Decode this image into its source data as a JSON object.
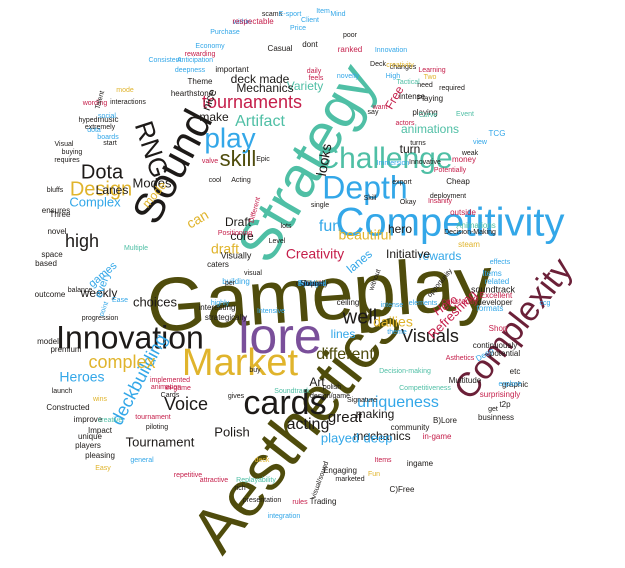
{
  "palette": {
    "olive": "#4f4c0c",
    "teal": "#4fbfa5",
    "blue": "#33a7e8",
    "black": "#1d1a18",
    "purple": "#7a4f9a",
    "gold": "#e0b42c",
    "crimson": "#c51e4a",
    "maroon": "#6b2038"
  },
  "words": [
    {
      "text": "Gameplay",
      "color": "olive"
    },
    {
      "text": "Aesthetics",
      "color": "olive"
    },
    {
      "text": "Strategy",
      "color": "teal"
    },
    {
      "text": "Competitivity",
      "color": "blue"
    },
    {
      "text": "lore",
      "color": "purple"
    },
    {
      "text": "Innovation",
      "color": "black"
    },
    {
      "text": "Sound",
      "color": "black"
    },
    {
      "text": "Market",
      "color": "gold"
    },
    {
      "text": "Complexity",
      "color": "maroon"
    },
    {
      "text": "Depth",
      "color": "blue"
    },
    {
      "text": "Challenge",
      "color": "teal"
    },
    {
      "text": "cards",
      "color": "black"
    },
    {
      "text": "play",
      "color": "blue"
    },
    {
      "text": "skill",
      "color": "olive"
    },
    {
      "text": "RNG",
      "color": "black"
    },
    {
      "text": "tournaments",
      "color": "crimson"
    },
    {
      "text": "Visuals",
      "color": "black"
    },
    {
      "text": "deckbuilding",
      "color": "blue"
    },
    {
      "text": "uniqueness",
      "color": "blue"
    },
    {
      "text": "Design",
      "color": "gold"
    },
    {
      "text": "Dota",
      "color": "black"
    },
    {
      "text": "different",
      "color": "olive"
    },
    {
      "text": "Voice",
      "color": "black"
    },
    {
      "text": "acting",
      "color": "black"
    },
    {
      "text": "well",
      "color": "black"
    },
    {
      "text": "complex",
      "color": "gold"
    },
    {
      "text": "high",
      "color": "black"
    },
    {
      "text": "Artifact",
      "color": "teal"
    },
    {
      "text": "draft",
      "color": "gold"
    },
    {
      "text": "fun",
      "color": "blue"
    },
    {
      "text": "dailies",
      "color": "gold"
    },
    {
      "text": "Creativity",
      "color": "crimson"
    },
    {
      "text": "Heroes",
      "color": "blue"
    },
    {
      "text": "Tournament",
      "color": "black"
    },
    {
      "text": "mechanics",
      "color": "black"
    },
    {
      "text": "played",
      "color": "blue"
    },
    {
      "text": "deep",
      "color": "blue"
    },
    {
      "text": "Polish",
      "color": "black"
    },
    {
      "text": "great",
      "color": "black"
    },
    {
      "text": "making",
      "color": "black"
    },
    {
      "text": "Refreshing",
      "color": "crimson"
    },
    {
      "text": "beautiful",
      "color": "gold"
    },
    {
      "text": "choices",
      "color": "black"
    },
    {
      "text": "weekly",
      "color": "black"
    },
    {
      "text": "deck made",
      "color": "black"
    },
    {
      "text": "Variety",
      "color": "teal"
    },
    {
      "text": "Mechanics",
      "color": "black"
    },
    {
      "text": "Modes",
      "color": "black"
    },
    {
      "text": "Complex",
      "color": "blue"
    },
    {
      "text": "rewards",
      "color": "blue"
    },
    {
      "text": "Initiative",
      "color": "black"
    },
    {
      "text": "Lanes",
      "color": "black"
    },
    {
      "text": "looks",
      "color": "black"
    },
    {
      "text": "hero",
      "color": "black"
    },
    {
      "text": "turn",
      "color": "black"
    },
    {
      "text": "lanes",
      "color": "blue"
    },
    {
      "text": "lines",
      "color": "blue"
    },
    {
      "text": "Art",
      "color": "black"
    },
    {
      "text": "Draft",
      "color": "black"
    },
    {
      "text": "core",
      "color": "black"
    },
    {
      "text": "nice",
      "color": "black"
    },
    {
      "text": "mode",
      "color": "gold"
    },
    {
      "text": "make",
      "color": "black"
    },
    {
      "text": "can",
      "color": "gold"
    },
    {
      "text": "Free",
      "color": "crimson"
    },
    {
      "text": "animations",
      "color": "teal"
    },
    {
      "text": "Hero",
      "color": "crimson"
    },
    {
      "text": "every",
      "color": "blue"
    },
    {
      "text": "games",
      "color": "blue"
    },
    {
      "text": "Visually",
      "color": "black"
    },
    {
      "text": "strategically",
      "color": "black"
    },
    {
      "text": "interesting",
      "color": "black"
    },
    {
      "text": "ceiling",
      "color": "black"
    },
    {
      "text": "hearthstone",
      "color": "black"
    },
    {
      "text": "Theme",
      "color": "black"
    },
    {
      "text": "important",
      "color": "black"
    },
    {
      "text": "music",
      "color": "black"
    },
    {
      "text": "dota",
      "color": "blue"
    },
    {
      "text": "boards",
      "color": "blue"
    },
    {
      "text": "extremely",
      "color": "black"
    },
    {
      "text": "Casual",
      "color": "black"
    },
    {
      "text": "dont",
      "color": "black"
    },
    {
      "text": "ranked",
      "color": "crimson"
    },
    {
      "text": "Intense",
      "color": "black"
    },
    {
      "text": "playing",
      "color": "black"
    },
    {
      "text": "Playing",
      "color": "black"
    },
    {
      "text": "TCG",
      "color": "blue"
    },
    {
      "text": "weak",
      "color": "black"
    },
    {
      "text": "money",
      "color": "crimson"
    },
    {
      "text": "Cheap",
      "color": "black"
    },
    {
      "text": "outside",
      "color": "crimson"
    },
    {
      "text": "Animations",
      "color": "teal"
    },
    {
      "text": "steam",
      "color": "gold"
    },
    {
      "text": "Items",
      "color": "blue"
    },
    {
      "text": "related",
      "color": "blue"
    },
    {
      "text": "soundtrack",
      "color": "black"
    },
    {
      "text": "Excellent",
      "color": "crimson"
    },
    {
      "text": "developer",
      "color": "black"
    },
    {
      "text": "constantly",
      "color": "crimson"
    },
    {
      "text": "formats",
      "color": "blue"
    },
    {
      "text": "ccg",
      "color": "blue"
    },
    {
      "text": "Shop",
      "color": "crimson"
    },
    {
      "text": "continuously",
      "color": "black"
    },
    {
      "text": "Deep",
      "color": "blue"
    },
    {
      "text": "potential",
      "color": "black"
    },
    {
      "text": "etc",
      "color": "black"
    },
    {
      "text": "graphic",
      "color": "black"
    },
    {
      "text": "surprisingly",
      "color": "crimson"
    },
    {
      "text": "explore",
      "color": "blue"
    },
    {
      "text": "t2p",
      "color": "black"
    },
    {
      "text": "get",
      "color": "black"
    },
    {
      "text": "businness",
      "color": "black"
    },
    {
      "text": "in-game",
      "color": "crimson"
    },
    {
      "text": "B)Lore",
      "color": "black"
    },
    {
      "text": "ingame",
      "color": "black"
    },
    {
      "text": "community",
      "color": "black"
    },
    {
      "text": "Engaging",
      "color": "black"
    },
    {
      "text": "marketed",
      "color": "black"
    },
    {
      "text": "C)Free",
      "color": "black"
    },
    {
      "text": "Trading",
      "color": "black"
    },
    {
      "text": "Constructed",
      "color": "black"
    },
    {
      "text": "improve",
      "color": "black"
    },
    {
      "text": "unique",
      "color": "black"
    },
    {
      "text": "players",
      "color": "black"
    },
    {
      "text": "pleasing",
      "color": "black"
    },
    {
      "text": "Impact",
      "color": "black"
    },
    {
      "text": "launch",
      "color": "black"
    },
    {
      "text": "premium",
      "color": "black"
    },
    {
      "text": "model",
      "color": "black"
    },
    {
      "text": "based",
      "color": "black"
    },
    {
      "text": "outcome",
      "color": "black"
    },
    {
      "text": "Three",
      "color": "black"
    },
    {
      "text": "novel",
      "color": "black"
    },
    {
      "text": "space",
      "color": "black"
    },
    {
      "text": "ensures",
      "color": "black"
    },
    {
      "text": "bluffs",
      "color": "black"
    },
    {
      "text": "requires",
      "color": "black"
    },
    {
      "text": "buying",
      "color": "black"
    },
    {
      "text": "Visual",
      "color": "black"
    },
    {
      "text": "hyped",
      "color": "black"
    },
    {
      "text": "wording",
      "color": "crimson"
    },
    {
      "text": "start",
      "color": "black"
    },
    {
      "text": "social",
      "color": "blue"
    },
    {
      "text": "mode",
      "color": "gold"
    },
    {
      "text": "Consistent",
      "color": "blue"
    },
    {
      "text": "rewarding",
      "color": "crimson"
    },
    {
      "text": "Anticipation",
      "color": "blue"
    },
    {
      "text": "Economy",
      "color": "blue"
    },
    {
      "text": "deepness",
      "color": "blue"
    },
    {
      "text": "Purchase",
      "color": "blue"
    },
    {
      "text": "within",
      "color": "blue"
    },
    {
      "text": "respectable",
      "color": "crimson"
    },
    {
      "text": "scams",
      "color": "black"
    },
    {
      "text": "E-sport",
      "color": "blue"
    },
    {
      "text": "Client",
      "color": "blue"
    },
    {
      "text": "Item",
      "color": "blue"
    },
    {
      "text": "Mind",
      "color": "blue"
    },
    {
      "text": "Price",
      "color": "blue"
    },
    {
      "text": "poor",
      "color": "black"
    },
    {
      "text": "Deck",
      "color": "black"
    },
    {
      "text": "changes",
      "color": "black"
    },
    {
      "text": "Learning",
      "color": "crimson"
    },
    {
      "text": "High",
      "color": "blue"
    },
    {
      "text": "need",
      "color": "black"
    },
    {
      "text": "required",
      "color": "black"
    },
    {
      "text": "Event",
      "color": "teal"
    },
    {
      "text": "Curve",
      "color": "teal"
    },
    {
      "text": "view",
      "color": "blue"
    },
    {
      "text": "Potentially",
      "color": "crimson"
    },
    {
      "text": "Insanity",
      "color": "crimson"
    },
    {
      "text": "Okay",
      "color": "black"
    },
    {
      "text": "Immersion",
      "color": "blue"
    },
    {
      "text": "Multitude",
      "color": "black"
    },
    {
      "text": "Decision-making",
      "color": "teal"
    },
    {
      "text": "Competitiveness",
      "color": "teal"
    },
    {
      "text": "Signature",
      "color": "black"
    },
    {
      "text": "design/game",
      "color": "black"
    },
    {
      "text": "Soundtrack",
      "color": "teal"
    },
    {
      "text": "polish",
      "color": "black"
    },
    {
      "text": "buy",
      "color": "black"
    },
    {
      "text": "gives",
      "color": "black"
    },
    {
      "text": "rich",
      "color": "black"
    },
    {
      "text": "presentation",
      "color": "black"
    },
    {
      "text": "Replayability",
      "color": "teal"
    },
    {
      "text": "rules",
      "color": "crimson"
    },
    {
      "text": "integration",
      "color": "blue"
    },
    {
      "text": "visual/sound",
      "color": "black"
    },
    {
      "text": "attractive",
      "color": "crimson"
    },
    {
      "text": "repetitive",
      "color": "crimson"
    },
    {
      "text": "tournament",
      "color": "crimson"
    },
    {
      "text": "piloting",
      "color": "black"
    },
    {
      "text": "Easy",
      "color": "gold"
    },
    {
      "text": "general",
      "color": "blue"
    },
    {
      "text": "implemented",
      "color": "crimson"
    },
    {
      "text": "In-game",
      "color": "crimson"
    },
    {
      "text": "animation",
      "color": "crimson"
    },
    {
      "text": "Cards",
      "color": "black"
    },
    {
      "text": "Asthetics",
      "color": "crimson"
    },
    {
      "text": "opportunity",
      "color": "black"
    },
    {
      "text": "elements",
      "color": "blue"
    },
    {
      "text": "theme",
      "color": "blue"
    },
    {
      "text": "intense",
      "color": "blue"
    },
    {
      "text": "building",
      "color": "blue"
    },
    {
      "text": "caters",
      "color": "black"
    },
    {
      "text": "visual",
      "color": "black"
    },
    {
      "text": "Positioning",
      "color": "crimson"
    },
    {
      "text": "Level",
      "color": "black"
    },
    {
      "text": "lots",
      "color": "black"
    },
    {
      "text": "per",
      "color": "black"
    },
    {
      "text": "Epic",
      "color": "black"
    },
    {
      "text": "feels",
      "color": "crimson"
    },
    {
      "text": "want",
      "color": "crimson"
    },
    {
      "text": "actors",
      "color": "crimson"
    },
    {
      "text": "say",
      "color": "black"
    },
    {
      "text": "cool",
      "color": "black"
    },
    {
      "text": "valve",
      "color": "crimson"
    },
    {
      "text": "Acting",
      "color": "black"
    },
    {
      "text": "Skill",
      "color": "black"
    },
    {
      "text": "export",
      "color": "black"
    },
    {
      "text": "daily",
      "color": "crimson"
    },
    {
      "text": "novelty",
      "color": "blue"
    },
    {
      "text": "creativity",
      "color": "gold"
    },
    {
      "text": "Tactical",
      "color": "teal"
    },
    {
      "text": "Two",
      "color": "gold"
    },
    {
      "text": "Innovation",
      "color": "blue"
    },
    {
      "text": "interactions",
      "color": "black"
    },
    {
      "text": "turns",
      "color": "black"
    },
    {
      "text": "deployment",
      "color": "black"
    },
    {
      "text": "Innovative",
      "color": "black"
    },
    {
      "text": "Decision-Making",
      "color": "black"
    },
    {
      "text": "Different",
      "color": "crimson"
    },
    {
      "text": "without",
      "color": "black"
    },
    {
      "text": "Ease",
      "color": "blue"
    },
    {
      "text": "point",
      "color": "blue"
    },
    {
      "text": "progression",
      "color": "black"
    },
    {
      "text": "single",
      "color": "black"
    },
    {
      "text": "Talent",
      "color": "black"
    },
    {
      "text": "Intensive",
      "color": "blue"
    },
    {
      "text": "effects",
      "color": "blue"
    },
    {
      "text": "balance",
      "color": "black"
    },
    {
      "text": "Multiple",
      "color": "teal"
    },
    {
      "text": "wins",
      "color": "gold"
    },
    {
      "text": "creative",
      "color": "teal"
    },
    {
      "text": "Items",
      "color": "crimson"
    },
    {
      "text": "deck",
      "color": "gold"
    },
    {
      "text": "Fun",
      "color": "gold"
    },
    {
      "text": "highly",
      "color": "blue"
    },
    {
      "text": "Call",
      "color": "gold"
    },
    {
      "text": "company",
      "color": "black"
    },
    {
      "text": "dead",
      "color": "crimson"
    },
    {
      "text": "ring",
      "color": "blue"
    },
    {
      "text": "A)Voice",
      "color": "blue"
    },
    {
      "text": "B-visual",
      "color": "blue"
    },
    {
      "text": "Arms",
      "color": "black"
    },
    {
      "text": "ease",
      "color": "black"
    },
    {
      "text": "modes",
      "color": "blue"
    },
    {
      "text": "Sound",
      "color": "black"
    }
  ]
}
